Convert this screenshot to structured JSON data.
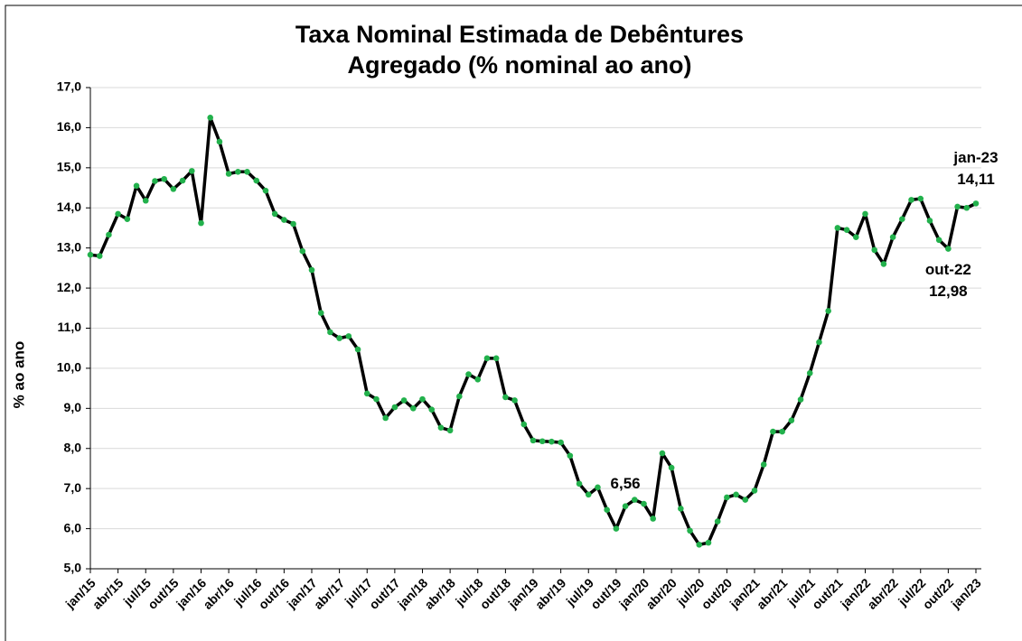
{
  "chart_data": {
    "type": "line",
    "title": [
      "Taxa Nominal Estimada de Debêntures",
      "Agregado  (% nominal ao ano)"
    ],
    "y_label": "% ao ano",
    "categories": [
      "jan/15",
      null,
      null,
      "abr/15",
      null,
      null,
      "jul/15",
      null,
      null,
      "out/15",
      null,
      null,
      "jan/16",
      null,
      null,
      "abr/16",
      null,
      null,
      "jul/16",
      null,
      null,
      "out/16",
      null,
      null,
      "jan/17",
      null,
      null,
      "abr/17",
      null,
      null,
      "jul/17",
      null,
      null,
      "out/17",
      null,
      null,
      "jan/18",
      null,
      null,
      "abr/18",
      null,
      null,
      "jul/18",
      null,
      null,
      "out/18",
      null,
      null,
      "jan/19",
      null,
      null,
      "abr/19",
      null,
      null,
      "jul/19",
      null,
      null,
      "out/19",
      null,
      null,
      "jan/20",
      null,
      null,
      "abr/20",
      null,
      null,
      "jul/20",
      null,
      null,
      "out/20",
      null,
      null,
      "jan/21",
      null,
      null,
      "abr/21",
      null,
      null,
      "jul/21",
      null,
      null,
      "out/21",
      null,
      null,
      "jan/22",
      null,
      null,
      "abr/22",
      null,
      null,
      "jul/22",
      null,
      null,
      "out/22",
      null,
      null,
      "jan/23"
    ],
    "series": [
      {
        "color": "#000000",
        "marker_color": "#22b14c",
        "values": [
          12.83,
          12.8,
          13.33,
          13.85,
          13.72,
          14.55,
          14.18,
          14.67,
          14.72,
          14.47,
          14.68,
          14.92,
          13.62,
          16.25,
          15.65,
          14.85,
          14.9,
          14.9,
          14.68,
          14.43,
          13.85,
          13.7,
          13.6,
          12.92,
          12.45,
          11.38,
          10.9,
          10.75,
          10.8,
          10.47,
          9.37,
          9.23,
          8.76,
          9.03,
          9.2,
          9.0,
          9.23,
          8.97,
          8.52,
          8.45,
          9.3,
          9.85,
          9.72,
          10.25,
          10.25,
          9.28,
          9.2,
          8.6,
          8.2,
          8.18,
          8.17,
          8.15,
          7.82,
          7.12,
          6.85,
          7.03,
          6.47,
          6.0,
          6.56,
          6.72,
          6.62,
          6.25,
          7.88,
          7.52,
          6.5,
          5.95,
          5.6,
          5.65,
          6.18,
          6.78,
          6.85,
          6.72,
          6.95,
          7.6,
          8.42,
          8.42,
          8.7,
          9.22,
          9.88,
          10.65,
          11.43,
          13.5,
          13.45,
          13.27,
          13.85,
          12.95,
          12.6,
          13.27,
          13.72,
          14.2,
          14.23,
          13.68,
          13.2,
          12.98,
          14.03,
          14.0,
          14.11
        ],
        "value_labels": [
          null,
          null,
          null,
          null,
          null,
          null,
          null,
          null,
          null,
          null,
          null,
          null,
          null,
          null,
          null,
          null,
          null,
          null,
          null,
          null,
          null,
          null,
          null,
          null,
          null,
          null,
          null,
          null,
          null,
          null,
          null,
          null,
          null,
          null,
          null,
          null,
          null,
          null,
          null,
          null,
          null,
          null,
          null,
          null,
          null,
          null,
          null,
          null,
          null,
          null,
          null,
          null,
          null,
          null,
          null,
          null,
          null,
          null,
          "6,56",
          null,
          null,
          null,
          null,
          null,
          null,
          null,
          null,
          null,
          null,
          null,
          null,
          null,
          null,
          null,
          null,
          null,
          null,
          null,
          null,
          null,
          null,
          null,
          null,
          null,
          null,
          null,
          null,
          null,
          null,
          null,
          null,
          null,
          null,
          "12,98",
          null,
          null,
          "14,11"
        ]
      }
    ],
    "annotations": [
      {
        "text": "jan-23",
        "x": "jan/23"
      },
      {
        "text": "out-22",
        "x": "out/22"
      }
    ],
    "ylim": [
      5,
      17
    ],
    "yticks": [
      {
        "value": 5,
        "label": "5,0"
      },
      {
        "value": 6,
        "label": "6,0"
      },
      {
        "value": 7,
        "label": "7,0"
      },
      {
        "value": 8,
        "label": "8,0"
      },
      {
        "value": 9,
        "label": "9,0"
      },
      {
        "value": 10,
        "label": "10,0"
      },
      {
        "value": 11,
        "label": "11,0"
      },
      {
        "value": 12,
        "label": "12,0"
      },
      {
        "value": 13,
        "label": "13,0"
      },
      {
        "value": 14,
        "label": "14,0"
      },
      {
        "value": 15,
        "label": "15,0"
      },
      {
        "value": 16,
        "label": "16,0"
      },
      {
        "value": 17,
        "label": "17,0"
      }
    ],
    "grid": true
  }
}
